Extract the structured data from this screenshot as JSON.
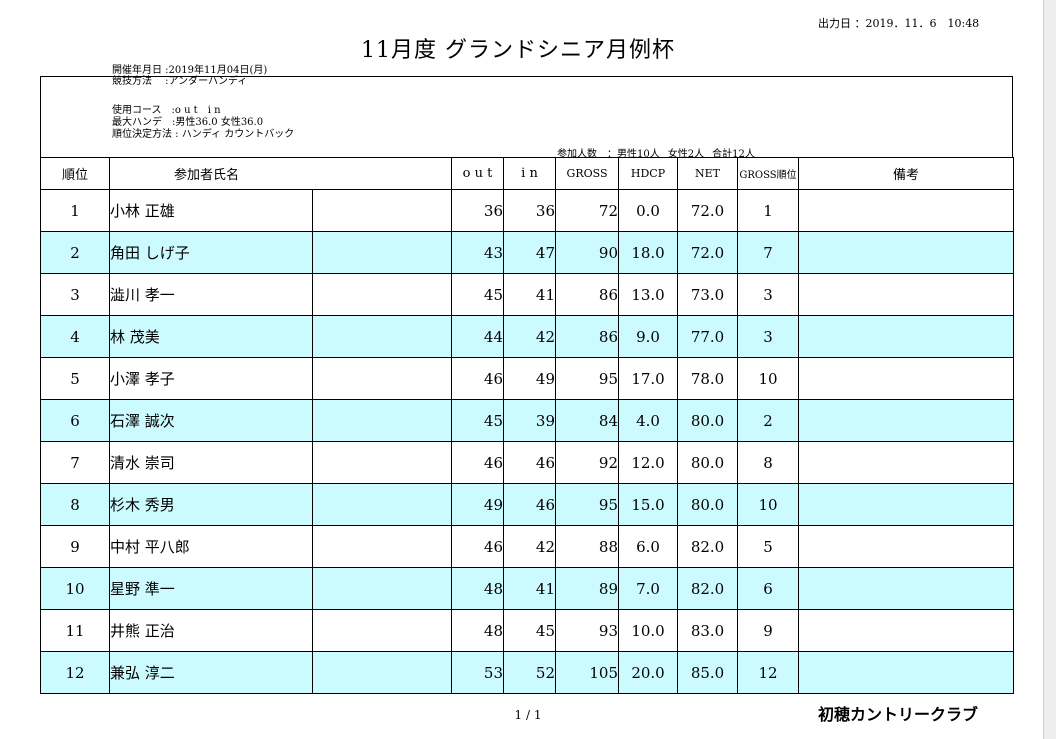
{
  "header": {
    "output_date": "出力日 ：2019．11．6　10:48",
    "title": "11月度 グランドシニア月例杯"
  },
  "meta": {
    "date": "開催年月日 :2019年11月04日(月)",
    "method": "競技方法　  :アンダーハンディ",
    "course": "使用コース　:o u t　i n",
    "max_handi": "最大ハンデ　:男性36.0 女性36.0",
    "ranking": "順位決定方法 : ハンディ カウントバック"
  },
  "participants": {
    "label": "参加人数　：男性10人",
    "female": "女性2人",
    "total": "合計12人"
  },
  "table": {
    "headers": {
      "rank": "順位",
      "name": "参加者氏名",
      "out": "o u t",
      "in": "i n",
      "gross": "GROSS",
      "hdcp": "HDCP",
      "net": "NET",
      "gross_rank": "GROSS順位",
      "remarks": "備考"
    },
    "rows": [
      {
        "rank": "1",
        "name": "小林 正雄",
        "out": "36",
        "in": "36",
        "gross": "72",
        "hdcp": "0.0",
        "net": "72.0",
        "gross_rank": "1",
        "remarks": ""
      },
      {
        "rank": "2",
        "name": "角田 しげ子",
        "out": "43",
        "in": "47",
        "gross": "90",
        "hdcp": "18.0",
        "net": "72.0",
        "gross_rank": "7",
        "remarks": ""
      },
      {
        "rank": "3",
        "name": "澁川 孝一",
        "out": "45",
        "in": "41",
        "gross": "86",
        "hdcp": "13.0",
        "net": "73.0",
        "gross_rank": "3",
        "remarks": ""
      },
      {
        "rank": "4",
        "name": "林 茂美",
        "out": "44",
        "in": "42",
        "gross": "86",
        "hdcp": "9.0",
        "net": "77.0",
        "gross_rank": "3",
        "remarks": ""
      },
      {
        "rank": "5",
        "name": "小澤 孝子",
        "out": "46",
        "in": "49",
        "gross": "95",
        "hdcp": "17.0",
        "net": "78.0",
        "gross_rank": "10",
        "remarks": ""
      },
      {
        "rank": "6",
        "name": "石澤 誠次",
        "out": "45",
        "in": "39",
        "gross": "84",
        "hdcp": "4.0",
        "net": "80.0",
        "gross_rank": "2",
        "remarks": ""
      },
      {
        "rank": "7",
        "name": "清水 崇司",
        "out": "46",
        "in": "46",
        "gross": "92",
        "hdcp": "12.0",
        "net": "80.0",
        "gross_rank": "8",
        "remarks": ""
      },
      {
        "rank": "8",
        "name": "杉木 秀男",
        "out": "49",
        "in": "46",
        "gross": "95",
        "hdcp": "15.0",
        "net": "80.0",
        "gross_rank": "10",
        "remarks": ""
      },
      {
        "rank": "9",
        "name": "中村 平八郎",
        "out": "46",
        "in": "42",
        "gross": "88",
        "hdcp": "6.0",
        "net": "82.0",
        "gross_rank": "5",
        "remarks": ""
      },
      {
        "rank": "10",
        "name": "星野 準一",
        "out": "48",
        "in": "41",
        "gross": "89",
        "hdcp": "7.0",
        "net": "82.0",
        "gross_rank": "6",
        "remarks": ""
      },
      {
        "rank": "11",
        "name": "井熊 正治",
        "out": "48",
        "in": "45",
        "gross": "93",
        "hdcp": "10.0",
        "net": "83.0",
        "gross_rank": "9",
        "remarks": ""
      },
      {
        "rank": "12",
        "name": "兼弘 淳二",
        "out": "53",
        "in": "52",
        "gross": "105",
        "hdcp": "20.0",
        "net": "85.0",
        "gross_rank": "12",
        "remarks": ""
      }
    ]
  },
  "footer": {
    "page": "1 / 1",
    "club": "初穂カントリークラブ"
  },
  "colors": {
    "alt_row": "#ccfbff"
  }
}
